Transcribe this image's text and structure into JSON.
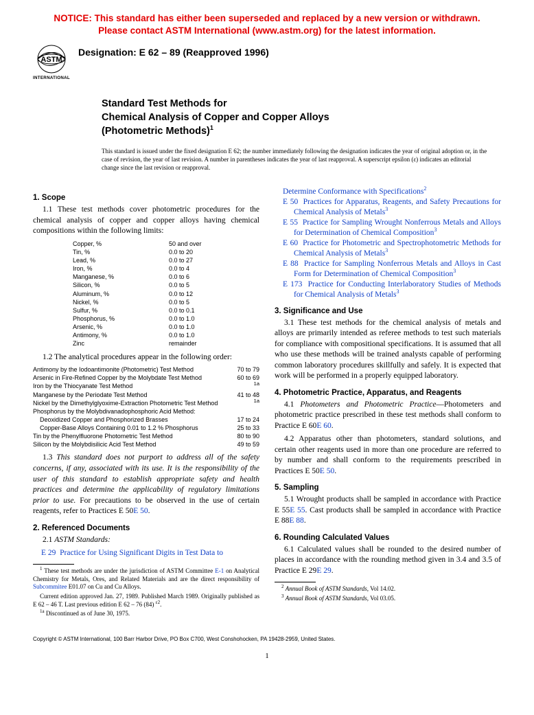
{
  "notice": {
    "line1": "NOTICE: This standard has either been superseded and replaced by a new version or withdrawn.",
    "line2": "Please contact ASTM International (www.astm.org) for the latest information."
  },
  "logo": {
    "label1": "ASTM",
    "label2": "INTERNATIONAL"
  },
  "designation": "Designation: E 62 – 89 (Reapproved 1996)",
  "title": {
    "line1": "Standard Test Methods for",
    "line2": "Chemical Analysis of Copper and Copper Alloys",
    "line3": "(Photometric Methods)",
    "sup": "1"
  },
  "issue_note": "This standard is issued under the fixed designation E 62; the number immediately following the designation indicates the year of original adoption or, in the case of revision, the year of last revision. A number in parentheses indicates the year of last reapproval. A superscript epsilon (ε) indicates an editorial change since the last revision or reapproval.",
  "s1": {
    "heading": "1. Scope",
    "p1": "1.1 These test methods cover photometric procedures for the chemical analysis of copper and copper alloys having chemical compositions within the following limits:",
    "comp": [
      [
        "Copper, %",
        "50 and over"
      ],
      [
        "Tin, %",
        "0.0 to 20"
      ],
      [
        "Lead, %",
        "0.0 to 27"
      ],
      [
        "Iron, %",
        "0.0 to 4"
      ],
      [
        "Manganese, %",
        "0.0 to 6"
      ],
      [
        "Silicon, %",
        "0.0 to 5"
      ],
      [
        "Aluminum, %",
        "0.0 to 12"
      ],
      [
        "Nickel, %",
        "0.0 to 5"
      ],
      [
        "Sulfur, %",
        "0.0 to 0.1"
      ],
      [
        "Phosphorus, %",
        "0.0 to 1.0"
      ],
      [
        "Arsenic, %",
        "0.0 to 1.0"
      ],
      [
        "Antimony, %",
        "0.0 to 1.0"
      ],
      [
        "Zinc",
        "remainder"
      ]
    ],
    "p2": "1.2 The analytical procedures appear in the following order:",
    "proc": [
      {
        "name": "Antimony by the Iodoantimonite (Photometric) Test Method",
        "sec": "70 to 79",
        "indent": false
      },
      {
        "name": "Arsenic in Fire-Refined Copper by the Molybdate Test Method",
        "sec": "60 to 69",
        "indent": false
      },
      {
        "name": "Iron by the Thiocyanate Test Method",
        "sec": "1a",
        "indent": false,
        "sup": true
      },
      {
        "name": "Manganese by the Periodate Test Method",
        "sec": "41 to 48",
        "indent": false
      },
      {
        "name": "Nickel by the Dimethylglyoxime-Extraction Photometric Test Method",
        "sec": "1a",
        "indent": false,
        "sup": true
      },
      {
        "name": "Phosphorus by the Molybdivanadophosphoric Acid Method:",
        "sec": "",
        "indent": false
      },
      {
        "name": "Deoxidized Copper and Phosphorized Brasses",
        "sec": "17 to 24",
        "indent": true
      },
      {
        "name": "Copper-Base Alloys Containing 0.01 to 1.2 % Phosphorus",
        "sec": "25 to 33",
        "indent": true
      },
      {
        "name": "Tin by the Phenylfluorone Photometric Test Method",
        "sec": "80 to 90",
        "indent": false
      },
      {
        "name": "Silicon by the Molybdisilicic Acid Test Method",
        "sec": "49 to 59",
        "indent": false
      }
    ],
    "p3a": "1.3 ",
    "p3b": "This standard does not purport to address all of the safety concerns, if any, associated with its use. It is the responsibility of the user of this standard to establish appropriate safety and health practices and determine the applicability of regulatory limitations prior to use.",
    "p3c": " For precautions to be observed in the use of certain reagents, refer to Practices E 50",
    "p3d": "E 50",
    "p3e": "."
  },
  "s2": {
    "heading": "2. Referenced Documents",
    "p1": "2.1 ",
    "p1i": "ASTM Standards:",
    "refs_left": [
      {
        "code": "E 29",
        "text": "Practice for Using Significant Digits in Test Data to"
      }
    ],
    "refs_right": [
      {
        "code": "",
        "text": "Determine Conformance with Specifications",
        "sup": "2"
      },
      {
        "code": "E 50",
        "text": "Practices for Apparatus, Reagents, and Safety Precautions for Chemical Analysis of Metals",
        "sup": "3"
      },
      {
        "code": "E 55",
        "text": "Practice for Sampling Wrought Nonferrous Metals and Alloys for Determination of Chemical Composition",
        "sup": "3"
      },
      {
        "code": "E 60",
        "text": "Practice for Photometric and Spectrophotometric Methods for Chemical Analysis of Metals",
        "sup": "3"
      },
      {
        "code": "E 88",
        "text": "Practice for Sampling Nonferrous Metals and Alloys in Cast Form for Determination of Chemical Composition",
        "sup": "3"
      },
      {
        "code": "E 173",
        "text": "Practice for Conducting Interlaboratory Studies of Methods for Chemical Analysis of Metals",
        "sup": "3"
      }
    ]
  },
  "s3": {
    "heading": "3. Significance and Use",
    "p1": "3.1 These test methods for the chemical analysis of metals and alloys are primarily intended as referee methods to test such materials for compliance with compositional specifications. It is assumed that all who use these methods will be trained analysts capable of performing common laboratory procedures skillfully and safely. It is expected that work will be performed in a properly equipped laboratory."
  },
  "s4": {
    "heading": "4. Photometric Practice, Apparatus, and Reagents",
    "p1a": "4.1 ",
    "p1b": "Photometers and Photometric Practice",
    "p1c": "—Photometers and photometric practice prescribed in these test methods shall conform to Practice E 60",
    "p1d": "E 60",
    "p1e": ".",
    "p2a": "4.2 Apparatus other than photometers, standard solutions, and certain other reagents used in more than one procedure are referred to by number and shall conform to the requirements prescribed in Practices E 50",
    "p2b": "E 50",
    "p2c": "."
  },
  "s5": {
    "heading": "5. Sampling",
    "p1a": "5.1 Wrought products shall be sampled in accordance with Practice E 55",
    "p1b": "E 55",
    "p1c": ". Cast products shall be sampled in accordance with Practice E 88",
    "p1d": "E 88",
    "p1e": "."
  },
  "s6": {
    "heading": "6. Rounding Calculated Values",
    "p1a": "6.1 Calculated values shall be rounded to the desired number of places in accordance with the rounding method given in 3.4 and 3.5 of Practice E 29",
    "p1b": "E 29",
    "p1c": "."
  },
  "fn_left": {
    "n1a": " These test methods are under the jurisdiction of ASTM Committee ",
    "n1b": "E-1",
    "n1c": " on Analytical Chemistry for Metals, Ores, and Related Materials and are the direct responsibility of ",
    "n1d": "Subcommitee",
    "n1e": " E01.07 on Cu and Cu Alloys.",
    "n2": "Current edition approved Jan. 27, 1989. Published March 1989. Originally published as E 62 – 46 T. Last previous edition E 62 – 76 (84) ",
    "n2sup": "ε2",
    "n2b": ".",
    "n3": " Discontinued as of June 30, 1975."
  },
  "fn_right": {
    "n2": "Annual Book of ASTM Standards",
    "n2v": ", Vol 14.02.",
    "n3": "Annual Book of ASTM Standards",
    "n3v": ", Vol 03.05."
  },
  "copyright": "Copyright © ASTM International, 100 Barr Harbor Drive, PO Box C700, West Conshohocken, PA 19428-2959, United States.",
  "pagenum": "1",
  "colors": {
    "notice": "#e30000",
    "link": "#1040c8",
    "text": "#000000",
    "bg": "#ffffff"
  }
}
